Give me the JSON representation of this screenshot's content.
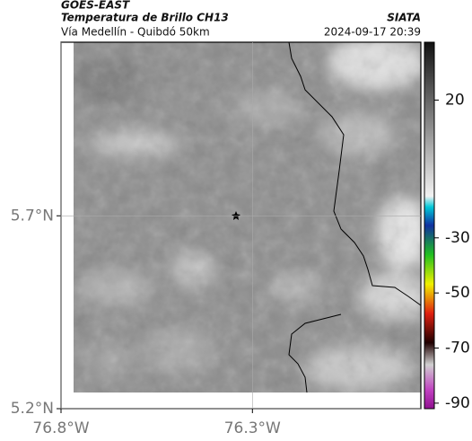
{
  "header": {
    "satellite": "GOES-EAST",
    "title": "Temperatura de Brillo CH13",
    "subtitle": "Vía Medellín - Quibdó 50km",
    "source": "SIATA",
    "timestamp": "2024-09-17 20:39"
  },
  "map": {
    "latlim": [
      5.2,
      6.15
    ],
    "lonlim": [
      -76.8,
      -75.86
    ],
    "latticks": [
      {
        "value": 5.2,
        "label": "5.2°N"
      },
      {
        "value": 5.7,
        "label": "5.7°N"
      }
    ],
    "lonticks": [
      {
        "value": -76.8,
        "label": "76.8°W"
      },
      {
        "value": -76.3,
        "label": "76.3°W"
      }
    ],
    "grid": true
  },
  "colorbar": {
    "lim": [
      -92,
      41
    ],
    "ticks": [
      20,
      -30,
      -50,
      -70,
      -90
    ]
  }
}
